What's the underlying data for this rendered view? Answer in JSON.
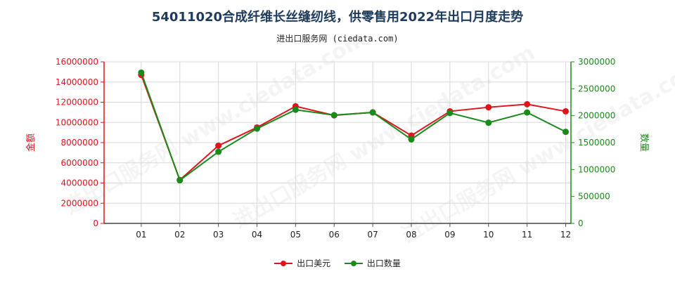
{
  "page": {
    "title": "54011020合成纤维长丝缝纫线，供零售用2022年出口月度走势",
    "subtitle": "进出口服务网 (ciedata.com)",
    "watermark_text": "进出口服务网 www.ciedata.com"
  },
  "colors": {
    "left_axis": "#e0141c",
    "right_axis": "#1a8a1a",
    "usd_series": "#e0141c",
    "qty_series": "#1a8a1a",
    "grid": "#d8d8d8"
  },
  "chart_data": {
    "type": "line",
    "categories": [
      "01",
      "02",
      "03",
      "04",
      "05",
      "06",
      "07",
      "08",
      "09",
      "10",
      "11",
      "12"
    ],
    "y_left": {
      "label": "金额",
      "ylim": [
        0,
        16000000
      ],
      "ticks": [
        "0",
        "2000000",
        "4000000",
        "6000000",
        "8000000",
        "10000000",
        "12000000",
        "14000000",
        "16000000"
      ]
    },
    "y_right": {
      "label": "数量",
      "ylim": [
        0,
        3000000
      ],
      "ticks": [
        "0",
        "500000",
        "1000000",
        "1500000",
        "2000000",
        "2500000",
        "3000000"
      ]
    },
    "series": [
      {
        "name": "出口美元",
        "axis": "left",
        "values": [
          14700000,
          4300000,
          7700000,
          9500000,
          11600000,
          10700000,
          11000000,
          8700000,
          11100000,
          11500000,
          11800000,
          11100000
        ]
      },
      {
        "name": "出口数量",
        "axis": "right",
        "values": [
          2800000,
          800000,
          1330000,
          1760000,
          2110000,
          2010000,
          2060000,
          1560000,
          2050000,
          1870000,
          2060000,
          1700000
        ]
      }
    ],
    "grid": true,
    "legend_position": "bottom-center"
  }
}
